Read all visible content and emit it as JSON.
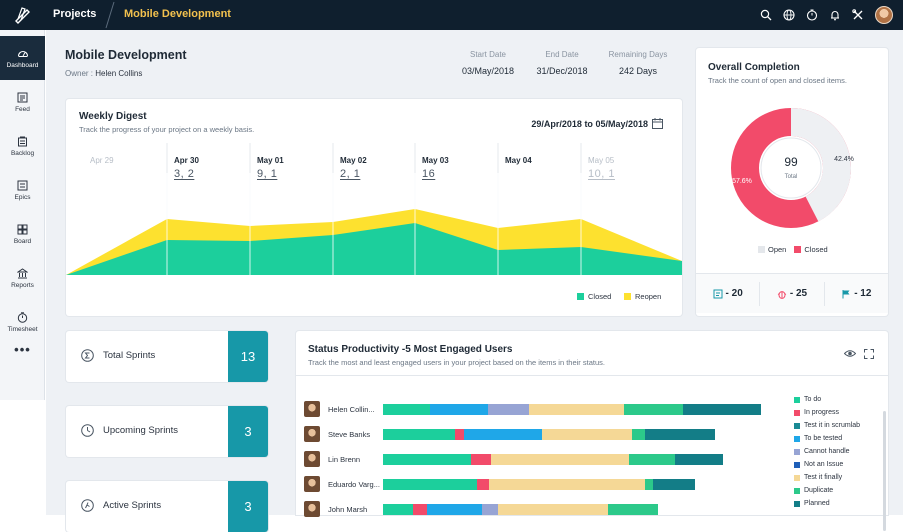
{
  "topbar": {
    "projects_label": "Projects",
    "breadcrumb": "Mobile Development",
    "icons": [
      "search-icon",
      "globe-icon",
      "timer-icon",
      "bell-icon",
      "tools-icon"
    ]
  },
  "sidebar": {
    "items": [
      {
        "label": "Dashboard",
        "icon": "dashboard-icon",
        "active": true
      },
      {
        "label": "Feed",
        "icon": "feed-icon"
      },
      {
        "label": "Backlog",
        "icon": "backlog-icon"
      },
      {
        "label": "Epics",
        "icon": "epics-icon"
      },
      {
        "label": "Board",
        "icon": "board-icon"
      },
      {
        "label": "Reports",
        "icon": "reports-icon"
      },
      {
        "label": "Timesheet",
        "icon": "timesheet-icon"
      }
    ],
    "more": "•••"
  },
  "project": {
    "title": "Mobile Development",
    "owner_label": "Owner :",
    "owner": "Helen Collins",
    "start_label": "Start Date",
    "start": "03/May/2018",
    "end_label": "End Date",
    "end": "31/Dec/2018",
    "remaining_label": "Remaining Days",
    "remaining": "242 Days"
  },
  "weekly": {
    "title": "Weekly Digest",
    "subtitle": "Track the progress of your project on a weekly basis.",
    "range_from": "29/Apr/2018",
    "range_to_word": "to",
    "range_to": "05/May/2018",
    "days": [
      {
        "label": "Apr 29",
        "value": "",
        "faded": true
      },
      {
        "label": "Apr 30",
        "value": "3, 2"
      },
      {
        "label": "May 01",
        "value": "9, 1"
      },
      {
        "label": "May 02",
        "value": "2, 1"
      },
      {
        "label": "May 03",
        "value": "16"
      },
      {
        "label": "May 04",
        "value": ""
      },
      {
        "label": "May 05",
        "value": "10, 1",
        "faded": true
      }
    ],
    "legend_closed": "Closed",
    "legend_reopen": "Reopen"
  },
  "completion": {
    "title": "Overall Completion",
    "subtitle": "Track the count of open and closed items.",
    "center_value": "99",
    "center_label": "Total",
    "open_pct": "42.4%",
    "closed_pct": "57.6%",
    "open_fraction": 0.424,
    "legend_open": "Open",
    "legend_closed": "Closed",
    "stats": [
      {
        "icon": "task-icon",
        "text": "- 20"
      },
      {
        "icon": "bug-icon",
        "text": "- 25"
      },
      {
        "icon": "milestone-flag-icon",
        "text": "- 12"
      }
    ]
  },
  "sprints": [
    {
      "label": "Total Sprints",
      "value": "13",
      "icon": "sigma-icon"
    },
    {
      "label": "Upcoming Sprints",
      "value": "3",
      "icon": "clock-icon"
    },
    {
      "label": "Active Sprints",
      "value": "3",
      "icon": "run-icon"
    }
  ],
  "productivity": {
    "title": "Status Productivity -5 Most Engaged Users",
    "subtitle": "Track the most and least engaged users in your project based on the items in their status.",
    "statuses": [
      {
        "name": "To do",
        "color": "#1ccf9c"
      },
      {
        "name": "In progress",
        "color": "#f24b6a"
      },
      {
        "name": "Test it in scrumlab",
        "color": "#1a8a94"
      },
      {
        "name": "To be tested",
        "color": "#1fa7e8"
      },
      {
        "name": "Cannot handle",
        "color": "#97a4d4"
      },
      {
        "name": "Not an Issue",
        "color": "#1f5fb8"
      },
      {
        "name": "Test it finally",
        "color": "#f5d896"
      },
      {
        "name": "Duplicate",
        "color": "#2cc98a"
      },
      {
        "name": "Planned",
        "color": "#137d87"
      }
    ],
    "users": [
      {
        "name": "Helen Collin...",
        "segments": [
          [
            "#1ccf9c",
            47
          ],
          [
            "#1fa7e8",
            58
          ],
          [
            "#97a4d4",
            41
          ],
          [
            "#f5d896",
            95
          ],
          [
            "#2cc98a",
            59
          ],
          [
            "#137d87",
            78
          ]
        ]
      },
      {
        "name": "Steve Banks",
        "segments": [
          [
            "#1ccf9c",
            72
          ],
          [
            "#f24b6a",
            9
          ],
          [
            "#1fa7e8",
            78
          ],
          [
            "#f5d896",
            90
          ],
          [
            "#2cc98a",
            13
          ],
          [
            "#137d87",
            70
          ]
        ]
      },
      {
        "name": "Lin Brenn",
        "segments": [
          [
            "#1ccf9c",
            88
          ],
          [
            "#f24b6a",
            20
          ],
          [
            "#f5d896",
            138
          ],
          [
            "#2cc98a",
            46
          ],
          [
            "#137d87",
            48
          ]
        ]
      },
      {
        "name": "Eduardo Varg...",
        "segments": [
          [
            "#1ccf9c",
            94
          ],
          [
            "#f24b6a",
            12
          ],
          [
            "#f5d896",
            156
          ],
          [
            "#2cc98a",
            8
          ],
          [
            "#137d87",
            42
          ]
        ]
      },
      {
        "name": "John Marsh",
        "segments": [
          [
            "#1ccf9c",
            30
          ],
          [
            "#f24b6a",
            14
          ],
          [
            "#1fa7e8",
            55
          ],
          [
            "#97a4d4",
            16
          ],
          [
            "#f5d896",
            110
          ],
          [
            "#2cc98a",
            50
          ]
        ]
      }
    ]
  }
}
